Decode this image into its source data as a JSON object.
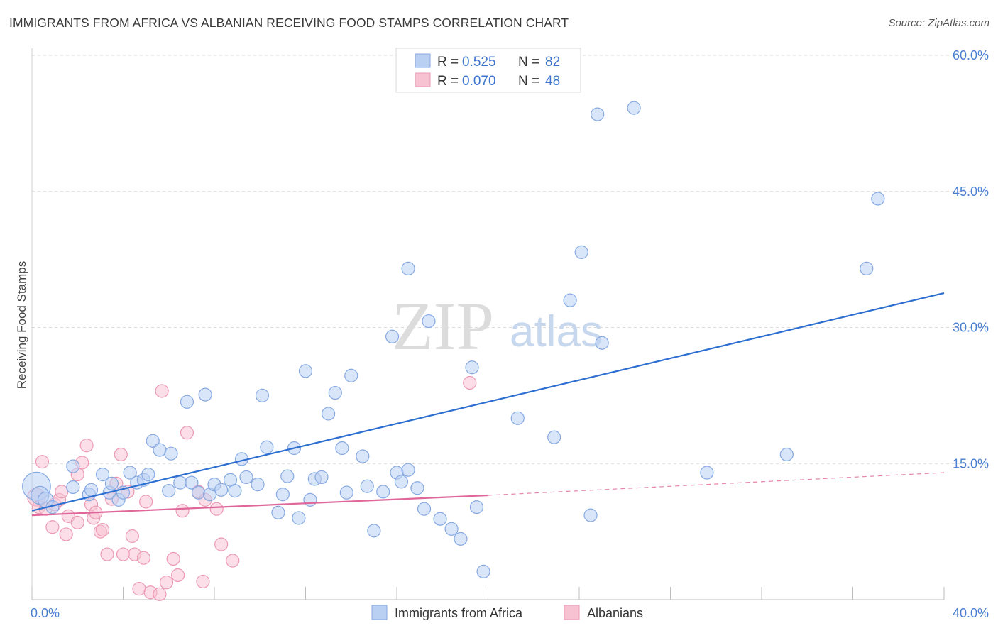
{
  "title": "IMMIGRANTS FROM AFRICA VS ALBANIAN RECEIVING FOOD STAMPS CORRELATION CHART",
  "source": "Source: ZipAtlas.com",
  "watermark": {
    "zip": "ZIP",
    "atlas": "atlas"
  },
  "colors": {
    "blue_fill": "#b9d0f3",
    "blue_stroke": "#86a9e2",
    "blue_line": "#2c6fd1",
    "pink_fill": "#f7c3d3",
    "pink_stroke": "#ec9ab4",
    "pink_line": "#e0679a",
    "grid": "#d9d9d9",
    "tick_text": "#4a7fd0"
  },
  "legend": {
    "rows": [
      {
        "r_label": "R =",
        "r_value": "0.525",
        "n_label": "N =",
        "n_value": "82",
        "series": "blue"
      },
      {
        "r_label": "R =",
        "r_value": "0.070",
        "n_label": "N =",
        "n_value": "48",
        "series": "pink"
      }
    ]
  },
  "bottom_legend": [
    "Immigrants from Africa",
    "Albanians"
  ],
  "chart_data": {
    "type": "scatter",
    "title": "IMMIGRANTS FROM AFRICA VS ALBANIAN RECEIVING FOOD STAMPS CORRELATION CHART",
    "xlabel": "",
    "ylabel": "Receiving Food Stamps",
    "xlim": [
      0,
      40
    ],
    "ylim": [
      0,
      60
    ],
    "x_tick_labels": [
      "0.0%",
      "40.0%"
    ],
    "y_ticks": [
      15,
      30,
      45,
      60
    ],
    "y_tick_labels": [
      "15.0%",
      "30.0%",
      "45.0%",
      "60.0%"
    ],
    "grid": "horizontal dashed",
    "legend_position": "top-center",
    "series": [
      {
        "name": "Immigrants from Africa",
        "color": "#86a9e2",
        "R": 0.525,
        "N": 82,
        "trend": {
          "x": [
            0,
            40
          ],
          "y": [
            9.8,
            33.8
          ],
          "style": "solid"
        },
        "points": [
          [
            0.2,
            12.5,
            22
          ],
          [
            0.35,
            11.5,
            14
          ],
          [
            0.6,
            11.0,
            12
          ],
          [
            0.9,
            10.2,
            10
          ],
          [
            1.8,
            12.4,
            10
          ],
          [
            1.8,
            14.7,
            10
          ],
          [
            2.5,
            11.6,
            10
          ],
          [
            2.6,
            12.1,
            10
          ],
          [
            3.1,
            13.8,
            10
          ],
          [
            3.4,
            11.8,
            10
          ],
          [
            3.5,
            12.8,
            10
          ],
          [
            3.8,
            11.0,
            10
          ],
          [
            4.0,
            11.8,
            10
          ],
          [
            4.3,
            14.0,
            10
          ],
          [
            4.6,
            12.9,
            10
          ],
          [
            4.9,
            13.2,
            10
          ],
          [
            5.1,
            13.8,
            10
          ],
          [
            5.3,
            17.5,
            10
          ],
          [
            5.6,
            16.5,
            10
          ],
          [
            6.0,
            12.0,
            10
          ],
          [
            6.1,
            16.1,
            10
          ],
          [
            6.5,
            12.9,
            10
          ],
          [
            6.8,
            21.8,
            10
          ],
          [
            7.0,
            12.9,
            10
          ],
          [
            7.3,
            11.8,
            10
          ],
          [
            7.6,
            22.6,
            10
          ],
          [
            7.8,
            11.6,
            10
          ],
          [
            8.0,
            12.7,
            10
          ],
          [
            8.3,
            12.1,
            10
          ],
          [
            8.7,
            13.2,
            10
          ],
          [
            8.9,
            12.0,
            10
          ],
          [
            9.2,
            15.5,
            10
          ],
          [
            9.4,
            13.5,
            10
          ],
          [
            9.9,
            12.7,
            10
          ],
          [
            10.1,
            22.5,
            10
          ],
          [
            10.3,
            16.8,
            10
          ],
          [
            10.8,
            9.6,
            10
          ],
          [
            11.0,
            11.6,
            10
          ],
          [
            11.2,
            13.6,
            10
          ],
          [
            11.5,
            16.7,
            10
          ],
          [
            11.7,
            9.0,
            10
          ],
          [
            12.0,
            25.2,
            10
          ],
          [
            12.2,
            11.0,
            10
          ],
          [
            12.4,
            13.3,
            10
          ],
          [
            12.7,
            13.5,
            10
          ],
          [
            13.0,
            20.5,
            10
          ],
          [
            13.3,
            22.8,
            10
          ],
          [
            13.6,
            16.7,
            10
          ],
          [
            13.8,
            11.8,
            10
          ],
          [
            14.0,
            24.7,
            10
          ],
          [
            14.5,
            15.8,
            10
          ],
          [
            14.7,
            12.5,
            10
          ],
          [
            15.0,
            7.6,
            10
          ],
          [
            15.4,
            11.9,
            10
          ],
          [
            15.8,
            29.0,
            10
          ],
          [
            16.0,
            14.0,
            10
          ],
          [
            16.2,
            13.0,
            10
          ],
          [
            16.5,
            14.3,
            10
          ],
          [
            16.5,
            36.5,
            10
          ],
          [
            16.9,
            12.3,
            10
          ],
          [
            17.2,
            10.0,
            10
          ],
          [
            17.4,
            30.7,
            10
          ],
          [
            17.9,
            8.9,
            10
          ],
          [
            18.4,
            7.8,
            10
          ],
          [
            18.8,
            6.7,
            10
          ],
          [
            19.3,
            25.6,
            10
          ],
          [
            19.5,
            10.2,
            10
          ],
          [
            19.8,
            3.1,
            10
          ],
          [
            21.3,
            20.0,
            10
          ],
          [
            22.9,
            17.9,
            10
          ],
          [
            23.6,
            33.0,
            10
          ],
          [
            24.1,
            38.3,
            10
          ],
          [
            24.5,
            9.3,
            10
          ],
          [
            24.8,
            53.5,
            10
          ],
          [
            25.0,
            28.3,
            10
          ],
          [
            26.4,
            54.2,
            10
          ],
          [
            29.6,
            14.0,
            10
          ],
          [
            33.1,
            16.0,
            10
          ],
          [
            36.6,
            36.5,
            10
          ],
          [
            37.1,
            44.2,
            10
          ]
        ]
      },
      {
        "name": "Albanians",
        "color": "#ec9ab4",
        "R": 0.07,
        "N": 48,
        "trend": {
          "x": [
            0,
            20
          ],
          "y": [
            9.3,
            11.5
          ],
          "style": "solid",
          "extended_to": [
            40,
            14.0
          ],
          "extended_style": "dashed"
        },
        "points": [
          [
            0.2,
            11.3,
            14
          ],
          [
            0.3,
            10.2,
            10
          ],
          [
            0.45,
            15.2,
            10
          ],
          [
            0.6,
            10.0,
            10
          ],
          [
            0.9,
            8.0,
            10
          ],
          [
            1.0,
            10.5,
            10
          ],
          [
            1.2,
            11.0,
            10
          ],
          [
            1.3,
            11.9,
            10
          ],
          [
            1.5,
            7.2,
            10
          ],
          [
            1.6,
            9.2,
            10
          ],
          [
            2.0,
            8.5,
            10
          ],
          [
            2.0,
            13.8,
            10
          ],
          [
            2.2,
            15.1,
            10
          ],
          [
            2.4,
            17.0,
            10
          ],
          [
            2.6,
            10.5,
            10
          ],
          [
            2.7,
            9.0,
            10
          ],
          [
            2.8,
            9.6,
            10
          ],
          [
            3.0,
            7.5,
            10
          ],
          [
            3.1,
            7.7,
            10
          ],
          [
            3.3,
            5.0,
            10
          ],
          [
            3.5,
            11.1,
            10
          ],
          [
            3.7,
            12.8,
            10
          ],
          [
            3.9,
            16.0,
            10
          ],
          [
            4.0,
            5.0,
            10
          ],
          [
            4.2,
            11.9,
            10
          ],
          [
            4.4,
            7.0,
            10
          ],
          [
            4.5,
            5.0,
            10
          ],
          [
            4.7,
            1.2,
            10
          ],
          [
            4.9,
            4.6,
            10
          ],
          [
            5.0,
            10.8,
            10
          ],
          [
            5.2,
            0.8,
            10
          ],
          [
            5.6,
            0.6,
            10
          ],
          [
            5.7,
            23.0,
            10
          ],
          [
            5.9,
            1.9,
            10
          ],
          [
            6.2,
            4.5,
            10
          ],
          [
            6.4,
            2.7,
            10
          ],
          [
            6.6,
            9.8,
            10
          ],
          [
            6.8,
            18.4,
            10
          ],
          [
            7.3,
            11.9,
            10
          ],
          [
            7.5,
            2.0,
            10
          ],
          [
            7.6,
            11.0,
            10
          ],
          [
            8.1,
            10.0,
            10
          ],
          [
            8.3,
            6.1,
            10
          ],
          [
            8.8,
            4.3,
            10
          ],
          [
            19.2,
            23.9,
            10
          ]
        ]
      }
    ]
  }
}
